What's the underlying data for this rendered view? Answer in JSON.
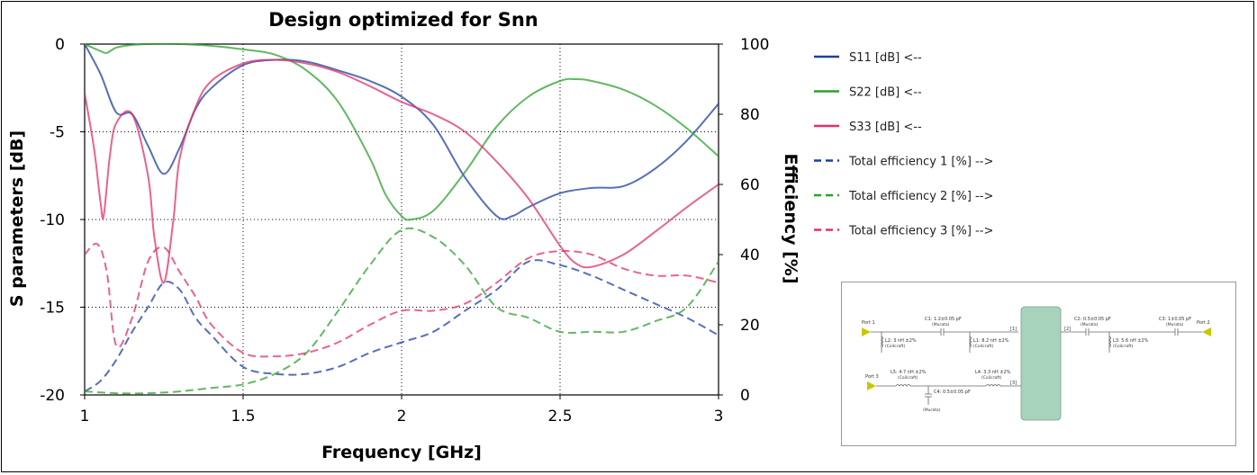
{
  "chart_data": {
    "type": "line",
    "title": "Design optimized for Snn",
    "xlabel": "Frequency [GHz]",
    "ylabel": "S parameters [dB]",
    "y2label": "Efficiency [%]",
    "xlim": [
      1,
      3
    ],
    "ylim": [
      -20,
      0
    ],
    "y2lim": [
      0,
      100
    ],
    "xticks": [
      "1",
      "1.5",
      "2",
      "2.5",
      "3"
    ],
    "yticks": [
      "0",
      "-5",
      "-10",
      "-15",
      "-20"
    ],
    "y2ticks": [
      "100",
      "80",
      "60",
      "40",
      "20",
      "0"
    ],
    "grid": true,
    "legend_position": "right",
    "series": [
      {
        "name": "S11 [dB] <--",
        "axis": "left",
        "style": "solid",
        "color": "#1f3fa0",
        "x": [
          1.0,
          1.05,
          1.1,
          1.15,
          1.2,
          1.25,
          1.3,
          1.35,
          1.4,
          1.5,
          1.6,
          1.7,
          1.8,
          1.9,
          2.0,
          2.1,
          2.2,
          2.3,
          2.35,
          2.4,
          2.5,
          2.6,
          2.7,
          2.8,
          2.9,
          3.0
        ],
        "y": [
          0.0,
          -1.7,
          -3.9,
          -4.0,
          -5.8,
          -7.4,
          -5.9,
          -3.7,
          -2.5,
          -1.2,
          -0.9,
          -1.0,
          -1.5,
          -2.1,
          -3.0,
          -4.6,
          -7.6,
          -9.8,
          -9.8,
          -9.3,
          -8.5,
          -8.2,
          -8.1,
          -7.1,
          -5.5,
          -3.4
        ]
      },
      {
        "name": "S22 [dB] <--",
        "axis": "left",
        "style": "solid",
        "color": "#2ea02e",
        "x": [
          1.0,
          1.05,
          1.07,
          1.1,
          1.15,
          1.2,
          1.3,
          1.4,
          1.5,
          1.6,
          1.7,
          1.8,
          1.9,
          1.95,
          2.0,
          2.03,
          2.1,
          2.2,
          2.3,
          2.4,
          2.5,
          2.55,
          2.6,
          2.7,
          2.8,
          2.9,
          3.0
        ],
        "y": [
          0.0,
          -0.4,
          -0.5,
          -0.2,
          -0.05,
          0.0,
          0.0,
          -0.1,
          -0.3,
          -0.6,
          -1.5,
          -3.3,
          -6.5,
          -8.6,
          -9.8,
          -10.0,
          -9.5,
          -7.3,
          -4.7,
          -3.0,
          -2.1,
          -2.0,
          -2.1,
          -2.6,
          -3.5,
          -4.8,
          -6.4
        ]
      },
      {
        "name": "S33 [dB] <--",
        "axis": "left",
        "style": "solid",
        "color": "#e0306a",
        "x": [
          1.0,
          1.03,
          1.05,
          1.06,
          1.08,
          1.1,
          1.15,
          1.2,
          1.22,
          1.25,
          1.28,
          1.3,
          1.35,
          1.4,
          1.5,
          1.6,
          1.7,
          1.8,
          1.9,
          2.0,
          2.1,
          2.2,
          2.3,
          2.4,
          2.5,
          2.55,
          2.6,
          2.7,
          2.8,
          2.9,
          3.0
        ],
        "y": [
          -2.8,
          -6.0,
          -9.0,
          -9.8,
          -6.3,
          -4.5,
          -4.0,
          -7.5,
          -11.0,
          -13.6,
          -10.0,
          -6.5,
          -3.6,
          -2.1,
          -1.1,
          -0.9,
          -1.1,
          -1.6,
          -2.4,
          -3.3,
          -4.0,
          -5.0,
          -6.7,
          -8.8,
          -11.5,
          -12.5,
          -12.7,
          -12.0,
          -10.7,
          -9.3,
          -8.0
        ]
      },
      {
        "name": "Total efficiency 1 [%] -->",
        "axis": "right",
        "style": "dashed",
        "color": "#1f3fa0",
        "x": [
          1.0,
          1.05,
          1.1,
          1.15,
          1.2,
          1.25,
          1.3,
          1.35,
          1.4,
          1.5,
          1.6,
          1.7,
          1.8,
          1.9,
          2.0,
          2.1,
          2.2,
          2.3,
          2.4,
          2.5,
          2.6,
          2.7,
          2.8,
          2.9,
          3.0
        ],
        "y": [
          1,
          4,
          10,
          18,
          25,
          32,
          30,
          22,
          17,
          8,
          6,
          6,
          8,
          12,
          15,
          18,
          24,
          30,
          38,
          37,
          34,
          30,
          26,
          22,
          17
        ]
      },
      {
        "name": "Total efficiency 2 [%] -->",
        "axis": "right",
        "style": "dashed",
        "color": "#2ea02e",
        "x": [
          1.0,
          1.1,
          1.2,
          1.3,
          1.4,
          1.5,
          1.6,
          1.7,
          1.8,
          1.9,
          2.0,
          2.1,
          2.2,
          2.3,
          2.4,
          2.5,
          2.6,
          2.7,
          2.8,
          2.9,
          3.0
        ],
        "y": [
          1,
          0.5,
          0.5,
          1,
          2,
          3,
          6,
          12,
          24,
          37,
          47,
          45,
          37,
          25,
          22,
          18,
          18,
          18,
          21,
          25,
          38
        ]
      },
      {
        "name": "Total efficiency 3 [%] -->",
        "axis": "right",
        "style": "dashed",
        "color": "#e0306a",
        "x": [
          1.0,
          1.04,
          1.07,
          1.1,
          1.15,
          1.2,
          1.25,
          1.3,
          1.35,
          1.4,
          1.5,
          1.6,
          1.7,
          1.8,
          1.9,
          2.0,
          2.1,
          2.2,
          2.3,
          2.4,
          2.5,
          2.6,
          2.7,
          2.8,
          2.9,
          3.0
        ],
        "y": [
          40,
          43,
          35,
          14,
          22,
          38,
          42,
          35,
          28,
          20,
          12,
          11,
          12,
          15,
          20,
          24,
          24,
          26,
          32,
          39,
          41,
          40,
          36,
          34,
          34,
          32
        ]
      }
    ]
  },
  "schematic": {
    "port1": "Port 1",
    "port2": "Port 2",
    "port3": "Port 3",
    "c1": "C1: 1.2±0.05 pF",
    "c1_mfr": "(Murata)",
    "l2": "L2: 3 nH ±2%",
    "l2_mfr": "(Coilcraft)",
    "l1": "L1: 8.2 nH ±2%",
    "l1_mfr": "(Coilcraft)",
    "c2": "C2: 0.5±0.05 pF",
    "c2_mfr": "(Murata)",
    "l3": "L3: 5.6 nH ±2%",
    "l3_mfr": "(Coilcraft)",
    "c3": "C3: 1±0.05 pF",
    "c3_mfr": "(Murata)",
    "l5": "L5: 4.7 nH ±2%",
    "l5_mfr": "(Coilcraft)",
    "l4": "L4: 3.3 nH ±2%",
    "l4_mfr": "(Coilcraft)",
    "c4": "C4: 0.5±0.05 pF",
    "c4_mfr": "(Murata)",
    "node1": "[1]",
    "node2": "[2]",
    "node3": "[3]"
  }
}
